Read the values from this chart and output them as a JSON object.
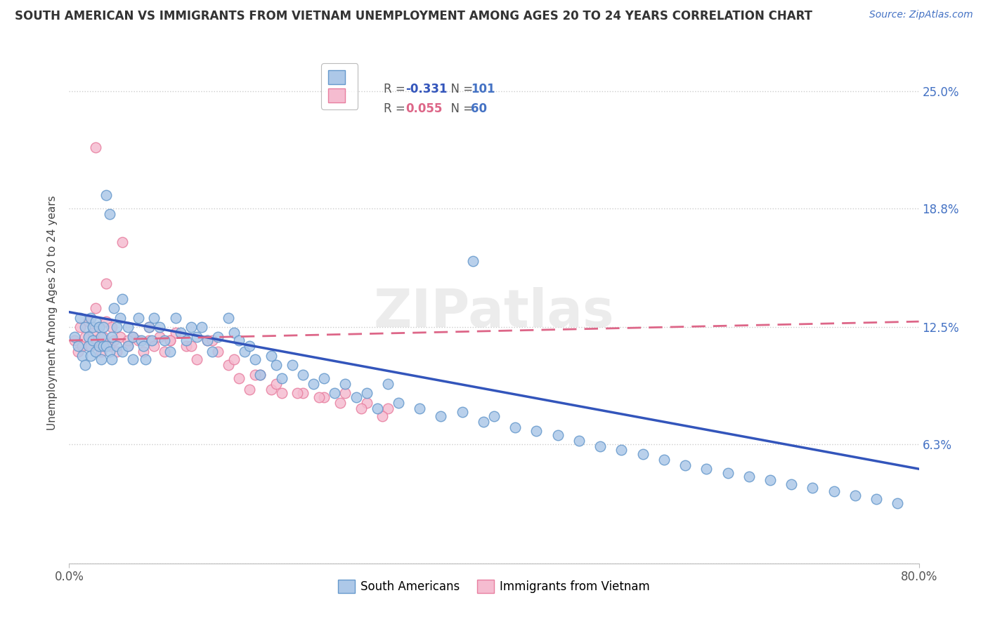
{
  "title": "SOUTH AMERICAN VS IMMIGRANTS FROM VIETNAM UNEMPLOYMENT AMONG AGES 20 TO 24 YEARS CORRELATION CHART",
  "source": "Source: ZipAtlas.com",
  "ylabel": "Unemployment Among Ages 20 to 24 years",
  "xlim": [
    0.0,
    0.8
  ],
  "ylim": [
    0.0,
    0.265
  ],
  "ytick_vals": [
    0.0,
    0.063,
    0.125,
    0.188,
    0.25
  ],
  "ytick_labels": [
    "",
    "6.3%",
    "12.5%",
    "18.8%",
    "25.0%"
  ],
  "blue_R": -0.331,
  "blue_N": 101,
  "pink_R": 0.055,
  "pink_N": 60,
  "blue_color": "#adc8e8",
  "blue_edge": "#6699cc",
  "pink_color": "#f5bcd0",
  "pink_edge": "#e87fa0",
  "blue_line_color": "#3355bb",
  "pink_line_color": "#dd6688",
  "watermark": "ZIPatlas",
  "legend_label_blue": "South Americans",
  "legend_label_pink": "Immigrants from Vietnam",
  "blue_scatter_x": [
    0.005,
    0.008,
    0.01,
    0.012,
    0.015,
    0.015,
    0.018,
    0.018,
    0.02,
    0.02,
    0.022,
    0.022,
    0.025,
    0.025,
    0.028,
    0.028,
    0.03,
    0.03,
    0.032,
    0.032,
    0.035,
    0.035,
    0.038,
    0.038,
    0.04,
    0.04,
    0.042,
    0.045,
    0.045,
    0.048,
    0.05,
    0.05,
    0.055,
    0.055,
    0.06,
    0.06,
    0.065,
    0.068,
    0.07,
    0.072,
    0.075,
    0.078,
    0.08,
    0.085,
    0.09,
    0.095,
    0.1,
    0.105,
    0.11,
    0.115,
    0.12,
    0.125,
    0.13,
    0.135,
    0.14,
    0.15,
    0.155,
    0.16,
    0.165,
    0.17,
    0.175,
    0.18,
    0.19,
    0.195,
    0.2,
    0.21,
    0.22,
    0.23,
    0.24,
    0.25,
    0.26,
    0.27,
    0.28,
    0.29,
    0.3,
    0.31,
    0.33,
    0.35,
    0.37,
    0.39,
    0.4,
    0.42,
    0.44,
    0.46,
    0.48,
    0.5,
    0.52,
    0.54,
    0.56,
    0.58,
    0.6,
    0.62,
    0.64,
    0.66,
    0.68,
    0.7,
    0.72,
    0.74,
    0.76,
    0.78,
    0.38
  ],
  "blue_scatter_y": [
    0.12,
    0.115,
    0.13,
    0.11,
    0.125,
    0.105,
    0.12,
    0.115,
    0.13,
    0.11,
    0.125,
    0.118,
    0.128,
    0.112,
    0.125,
    0.115,
    0.12,
    0.108,
    0.125,
    0.115,
    0.195,
    0.115,
    0.185,
    0.112,
    0.12,
    0.108,
    0.135,
    0.125,
    0.115,
    0.13,
    0.14,
    0.112,
    0.125,
    0.115,
    0.12,
    0.108,
    0.13,
    0.118,
    0.115,
    0.108,
    0.125,
    0.118,
    0.13,
    0.125,
    0.118,
    0.112,
    0.13,
    0.122,
    0.118,
    0.125,
    0.12,
    0.125,
    0.118,
    0.112,
    0.12,
    0.13,
    0.122,
    0.118,
    0.112,
    0.115,
    0.108,
    0.1,
    0.11,
    0.105,
    0.098,
    0.105,
    0.1,
    0.095,
    0.098,
    0.09,
    0.095,
    0.088,
    0.09,
    0.082,
    0.095,
    0.085,
    0.082,
    0.078,
    0.08,
    0.075,
    0.078,
    0.072,
    0.07,
    0.068,
    0.065,
    0.062,
    0.06,
    0.058,
    0.055,
    0.052,
    0.05,
    0.048,
    0.046,
    0.044,
    0.042,
    0.04,
    0.038,
    0.036,
    0.034,
    0.032,
    0.16
  ],
  "pink_scatter_x": [
    0.005,
    0.008,
    0.01,
    0.012,
    0.015,
    0.018,
    0.02,
    0.022,
    0.025,
    0.028,
    0.03,
    0.032,
    0.035,
    0.038,
    0.04,
    0.042,
    0.045,
    0.048,
    0.05,
    0.055,
    0.06,
    0.065,
    0.07,
    0.075,
    0.08,
    0.085,
    0.09,
    0.095,
    0.1,
    0.11,
    0.12,
    0.13,
    0.14,
    0.15,
    0.16,
    0.17,
    0.18,
    0.19,
    0.2,
    0.22,
    0.24,
    0.26,
    0.28,
    0.3,
    0.025,
    0.035,
    0.055,
    0.075,
    0.095,
    0.115,
    0.135,
    0.155,
    0.175,
    0.195,
    0.215,
    0.235,
    0.255,
    0.275,
    0.295,
    0.025
  ],
  "pink_scatter_y": [
    0.118,
    0.112,
    0.125,
    0.115,
    0.12,
    0.128,
    0.115,
    0.122,
    0.118,
    0.125,
    0.112,
    0.12,
    0.128,
    0.115,
    0.125,
    0.118,
    0.112,
    0.12,
    0.17,
    0.115,
    0.12,
    0.118,
    0.112,
    0.118,
    0.115,
    0.12,
    0.112,
    0.118,
    0.122,
    0.115,
    0.108,
    0.118,
    0.112,
    0.105,
    0.098,
    0.092,
    0.1,
    0.092,
    0.09,
    0.09,
    0.088,
    0.09,
    0.085,
    0.082,
    0.135,
    0.148,
    0.118,
    0.125,
    0.118,
    0.115,
    0.118,
    0.108,
    0.1,
    0.095,
    0.09,
    0.088,
    0.085,
    0.082,
    0.078,
    0.22
  ],
  "blue_trendline_x0": 0.0,
  "blue_trendline_y0": 0.133,
  "blue_trendline_x1": 0.8,
  "blue_trendline_y1": 0.05,
  "pink_trendline_x0": 0.0,
  "pink_trendline_y0": 0.118,
  "pink_trendline_x1": 0.8,
  "pink_trendline_y1": 0.128
}
